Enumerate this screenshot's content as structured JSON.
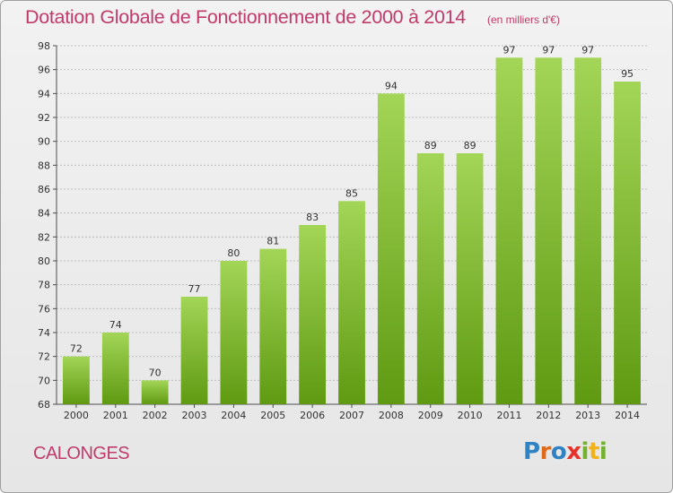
{
  "header": {
    "title": "Dotation Globale de Fonctionnement de 2000 à 2014",
    "unit": "(en milliers d'€)"
  },
  "footer": {
    "commune": "CALONGES",
    "logo_parts": [
      "P",
      "r",
      "o",
      "x",
      "i",
      "t",
      "i"
    ]
  },
  "colors": {
    "title": "#c03b6a",
    "bar_top": "#a3d557",
    "bar_bottom": "#5f9a12",
    "axis": "#4d4d4d",
    "grid": "#bfbfbf"
  },
  "chart_data": {
    "type": "bar",
    "title": "Dotation Globale de Fonctionnement de 2000 à 2014",
    "subtitle": "(en milliers d'€)",
    "xlabel": "",
    "ylabel": "",
    "categories": [
      "2000",
      "2001",
      "2002",
      "2003",
      "2004",
      "2005",
      "2006",
      "2007",
      "2008",
      "2009",
      "2010",
      "2011",
      "2012",
      "2013",
      "2014"
    ],
    "values": [
      72,
      74,
      70,
      77,
      80,
      81,
      83,
      85,
      94,
      89,
      89,
      97,
      97,
      97,
      95
    ],
    "ylim": [
      68,
      98
    ],
    "yticks": [
      68,
      70,
      72,
      74,
      76,
      78,
      80,
      82,
      84,
      86,
      88,
      90,
      92,
      94,
      96,
      98
    ],
    "grid": true,
    "legend": "none"
  }
}
